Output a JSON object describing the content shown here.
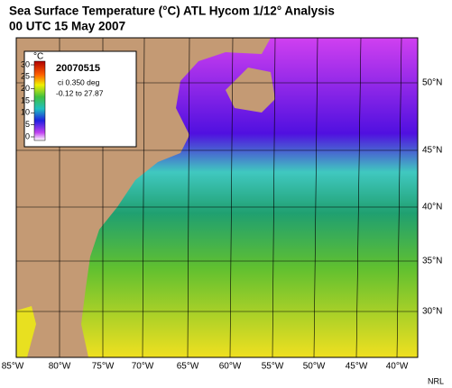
{
  "header": {
    "title": "Sea Surface Temperature (°C) ATL Hycom 1/12° Analysis",
    "subtitle": "00 UTC  15 May 2007"
  },
  "legend": {
    "unit": "°C",
    "ticks": [
      30,
      25,
      20,
      15,
      10,
      5,
      0
    ],
    "date": "20070515",
    "interval": "ci 0.350 deg",
    "range": "-0.12 to 27.87"
  },
  "map": {
    "lon_labels": [
      "85°W",
      "80°W",
      "75°W",
      "70°W",
      "65°W",
      "60°W",
      "55°W",
      "50°W",
      "45°W",
      "40°W"
    ],
    "lat_labels": [
      "50°N",
      "45°N",
      "40°N",
      "35°N",
      "30°N"
    ]
  },
  "credit": "NRL"
}
